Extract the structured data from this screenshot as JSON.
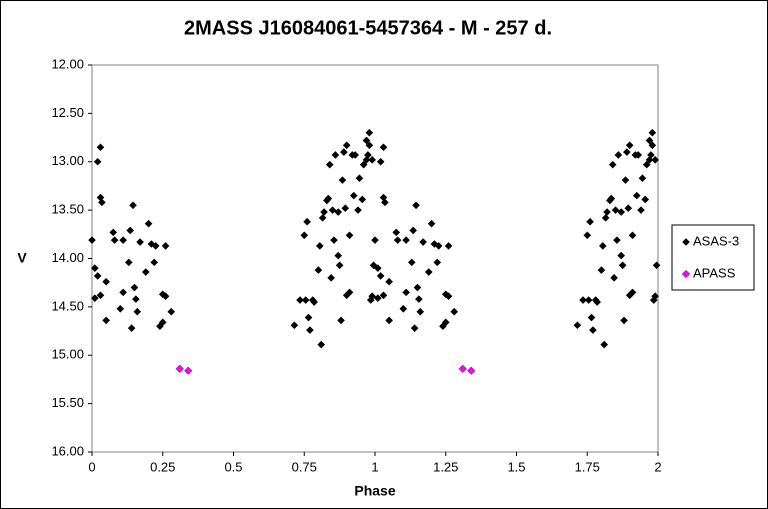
{
  "chart_data": {
    "type": "scatter",
    "title": "2MASS J16084061-5457364  - M - 257 d.",
    "x_label": "Phase",
    "y_label": "V",
    "xlim": [
      0,
      2
    ],
    "xticks": [
      0,
      0.25,
      0.5,
      0.75,
      1,
      1.25,
      1.5,
      1.75,
      2
    ],
    "ylim": [
      12,
      16
    ],
    "y_reversed": true,
    "yticks": [
      {
        "value": 12,
        "label": "12.00"
      },
      {
        "value": 12.5,
        "label": "12.50"
      },
      {
        "value": 13,
        "label": "13.00"
      },
      {
        "value": 13.5,
        "label": "13.50"
      },
      {
        "value": 14,
        "label": "14.00"
      },
      {
        "value": 14.5,
        "label": "14.50"
      },
      {
        "value": 15,
        "label": "15.00"
      },
      {
        "value": 15.5,
        "label": "15.50"
      },
      {
        "value": 16,
        "label": "16.00"
      }
    ],
    "legend": "right",
    "series": [
      {
        "name": "ASAS-3",
        "color": "#000000",
        "x": [
          0,
          0.01,
          0.02,
          0.03,
          0.03,
          0.035,
          0.01,
          0.02,
          0.03,
          0.05,
          0.05,
          0.075,
          0.08,
          0.1,
          0.11,
          0.11,
          0.13,
          0.135,
          0.145,
          0.14,
          0.15,
          0.155,
          0.16,
          0.17,
          0.19,
          0.2,
          0.21,
          0.22,
          0.225,
          0.24,
          0.25,
          0.25,
          0.26,
          0.26,
          0.28,
          0.715,
          0.735,
          0.755,
          0.76,
          0.75,
          0.765,
          0.77,
          0.78,
          0.785,
          0.8,
          0.805,
          0.81,
          0.815,
          0.83,
          0.82,
          0.835,
          0.845,
          0.84,
          0.85,
          0.855,
          0.86,
          0.87,
          0.87,
          0.875,
          0.88,
          0.885,
          0.89,
          0.895,
          0.9,
          0.9,
          0.91,
          0.91,
          0.92,
          0.925,
          0.93,
          0.94,
          0.945,
          0.955,
          0.96,
          0.97,
          0.97,
          0.975,
          0.98,
          0.98,
          0.985,
          0.99,
          0.99,
          0.995,
          1,
          1.01,
          1.02,
          1.03,
          1.03,
          1.035,
          1.01,
          1.02,
          1.03,
          1.05,
          1.05,
          1.075,
          1.08,
          1.1,
          1.11,
          1.11,
          1.13,
          1.135,
          1.145,
          1.14,
          1.15,
          1.155,
          1.16,
          1.17,
          1.19,
          1.2,
          1.21,
          1.22,
          1.225,
          1.24,
          1.25,
          1.25,
          1.26,
          1.26,
          1.28,
          1.715,
          1.735,
          1.755,
          1.76,
          1.75,
          1.765,
          1.77,
          1.78,
          1.785,
          1.8,
          1.805,
          1.81,
          1.815,
          1.83,
          1.82,
          1.835,
          1.845,
          1.84,
          1.85,
          1.855,
          1.86,
          1.87,
          1.87,
          1.875,
          1.88,
          1.885,
          1.89,
          1.895,
          1.9,
          1.9,
          1.91,
          1.91,
          1.92,
          1.925,
          1.93,
          1.94,
          1.945,
          1.955,
          1.96,
          1.97,
          1.97,
          1.975,
          1.98,
          1.98,
          1.985,
          1.99,
          1.99,
          1.995
        ],
        "values": [
          13.81,
          14.41,
          13.0,
          12.85,
          13.37,
          13.42,
          14.1,
          14.18,
          14.38,
          14.24,
          14.64,
          13.73,
          13.81,
          14.52,
          13.81,
          14.35,
          14.04,
          13.71,
          13.45,
          14.72,
          14.3,
          14.42,
          14.55,
          13.83,
          14.14,
          13.64,
          13.85,
          14.04,
          13.87,
          14.7,
          14.66,
          14.37,
          14.39,
          13.87,
          14.55,
          14.69,
          14.43,
          14.43,
          13.62,
          13.76,
          14.61,
          14.74,
          14.43,
          14.45,
          14.12,
          13.87,
          14.89,
          13.58,
          13.4,
          13.52,
          13.38,
          14.2,
          13.03,
          13.5,
          13.81,
          12.93,
          13.97,
          13.52,
          14.07,
          14.64,
          13.19,
          12.9,
          13.48,
          12.83,
          14.38,
          14.35,
          13.76,
          12.93,
          13.35,
          12.93,
          13.5,
          13.17,
          13.39,
          13.03,
          12.78,
          12.98,
          12.93,
          12.7,
          12.83,
          14.43,
          14.39,
          12.98,
          14.07,
          13.81,
          14.41,
          13.0,
          12.85,
          13.37,
          13.42,
          14.1,
          14.18,
          14.38,
          14.24,
          14.64,
          13.73,
          13.81,
          14.52,
          13.81,
          14.35,
          14.04,
          13.71,
          13.45,
          14.72,
          14.3,
          14.42,
          14.55,
          13.83,
          14.14,
          13.64,
          13.85,
          14.04,
          13.87,
          14.7,
          14.66,
          14.37,
          14.39,
          13.87,
          14.55,
          14.69,
          14.43,
          14.43,
          13.62,
          13.76,
          14.61,
          14.74,
          14.43,
          14.45,
          14.12,
          13.87,
          14.89,
          13.58,
          13.4,
          13.52,
          13.38,
          14.2,
          13.03,
          13.5,
          13.81,
          12.93,
          13.97,
          13.52,
          14.07,
          14.64,
          13.19,
          12.9,
          13.48,
          12.83,
          14.38,
          14.35,
          13.76,
          12.93,
          13.35,
          12.93,
          13.5,
          13.17,
          13.39,
          13.03,
          12.78,
          12.98,
          12.93,
          12.7,
          12.83,
          14.43,
          14.39,
          12.98,
          14.07
        ]
      },
      {
        "name": "APASS",
        "color": "#ff00ff",
        "x": [
          0.31,
          0.34,
          1.31,
          1.34
        ],
        "values": [
          15.14,
          15.16,
          15.14,
          15.16
        ]
      }
    ]
  }
}
